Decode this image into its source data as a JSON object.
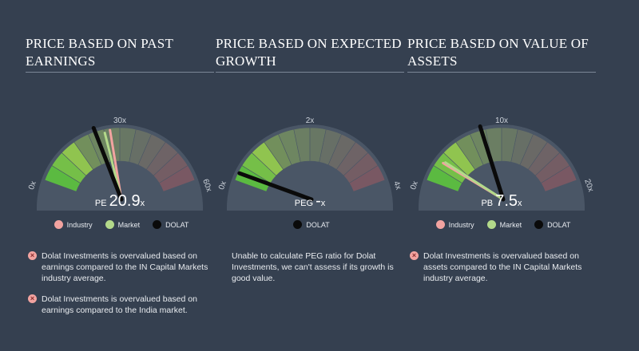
{
  "colors": {
    "industry": "#f2a3a0",
    "market": "#b3d98a",
    "dolat": "#0a0a0a",
    "good_zone": "#6cc04a",
    "bad_zone": "#b05a60"
  },
  "legend": {
    "industry": "Industry",
    "market": "Market",
    "dolat": "DOLAT"
  },
  "chart_data": [
    {
      "type": "gauge",
      "title": "PRICE BASED ON PAST EARNINGS",
      "metric": "PE",
      "value_text": "20.9",
      "unit": "x",
      "min": 0,
      "max": 60,
      "tick_labels": [
        "0x",
        "30x",
        "60x"
      ],
      "series": [
        {
          "name": "Industry",
          "value": 26
        },
        {
          "name": "Market",
          "value": 24
        },
        {
          "name": "DOLAT",
          "value": 20.9
        }
      ],
      "notes": [
        {
          "icon": "cross-icon",
          "text": "Dolat Investments is overvalued based on earnings compared to the IN Capital Markets industry average."
        },
        {
          "icon": "cross-icon",
          "text": "Dolat Investments is overvalued based on earnings compared to the India market."
        }
      ]
    },
    {
      "type": "gauge",
      "title": "PRICE BASED ON EXPECTED GROWTH",
      "metric": "PEG",
      "value_text": "-",
      "unit": "x",
      "min": 0,
      "max": 4,
      "tick_labels": [
        "0x",
        "2x",
        "4x"
      ],
      "series": [
        {
          "name": "DOLAT",
          "value": 0
        }
      ],
      "notes": [
        {
          "icon": "",
          "text": "Unable to calculate PEG ratio for Dolat Investments, we can't assess if its growth is good value."
        }
      ]
    },
    {
      "type": "gauge",
      "title": "PRICE BASED ON VALUE OF ASSETS",
      "metric": "PB",
      "value_text": "7.5",
      "unit": "x",
      "min": 0,
      "max": 20,
      "tick_labels": [
        "0x",
        "10x",
        "20x"
      ],
      "series": [
        {
          "name": "Industry",
          "value": 1.6
        },
        {
          "name": "Market",
          "value": 1.8
        },
        {
          "name": "DOLAT",
          "value": 7.5
        }
      ],
      "notes": [
        {
          "icon": "cross-icon",
          "text": "Dolat Investments is overvalued based on assets compared to the IN Capital Markets industry average."
        }
      ]
    }
  ]
}
